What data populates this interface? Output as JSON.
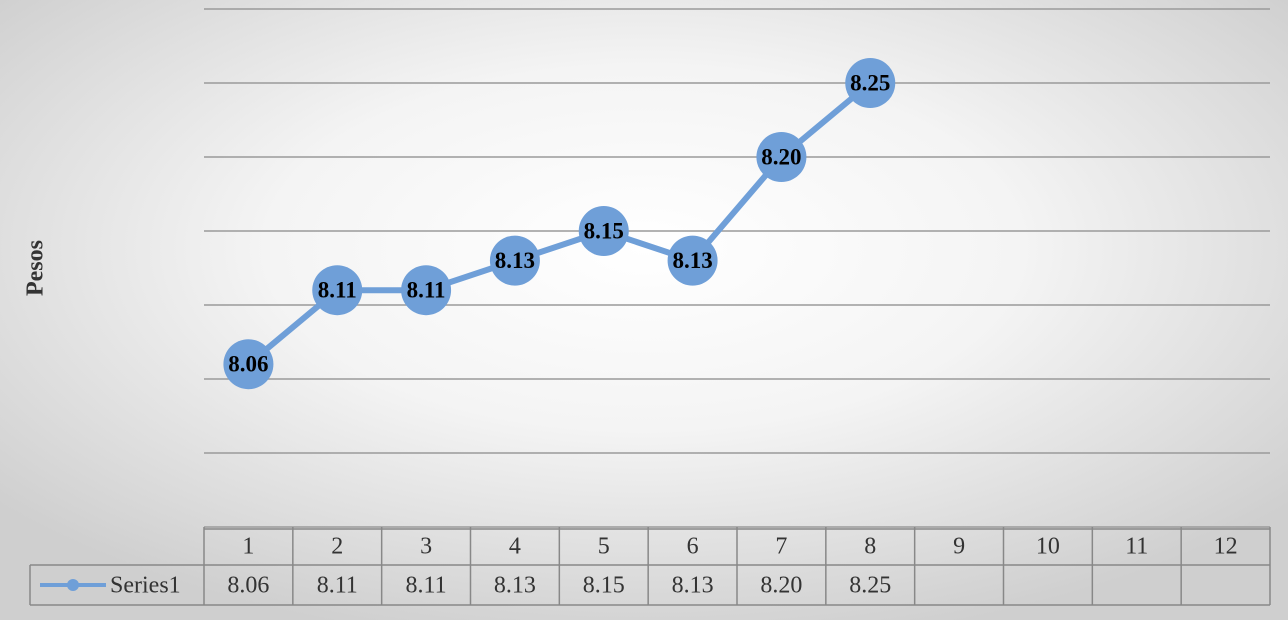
{
  "chart_data": {
    "type": "line",
    "y_label": "Pesos",
    "categories": [
      "1",
      "2",
      "3",
      "4",
      "5",
      "6",
      "7",
      "8",
      "9",
      "10",
      "11",
      "12"
    ],
    "series": [
      {
        "name": "Series1",
        "color": "#6f9fd8",
        "values": [
          8.06,
          8.11,
          8.11,
          8.13,
          8.15,
          8.13,
          8.2,
          8.25,
          null,
          null,
          null,
          null
        ],
        "value_labels": [
          "8.06",
          "8.11",
          "8.11",
          "8.13",
          "8.15",
          "8.13",
          "8.20",
          "8.25",
          null,
          null,
          null,
          null
        ]
      }
    ],
    "ylim": [
      7.95,
      8.3
    ],
    "yticks": [
      7.95,
      8.0,
      8.05,
      8.1,
      8.15,
      8.2,
      8.25,
      8.3
    ],
    "grid": true,
    "data_table": true
  }
}
